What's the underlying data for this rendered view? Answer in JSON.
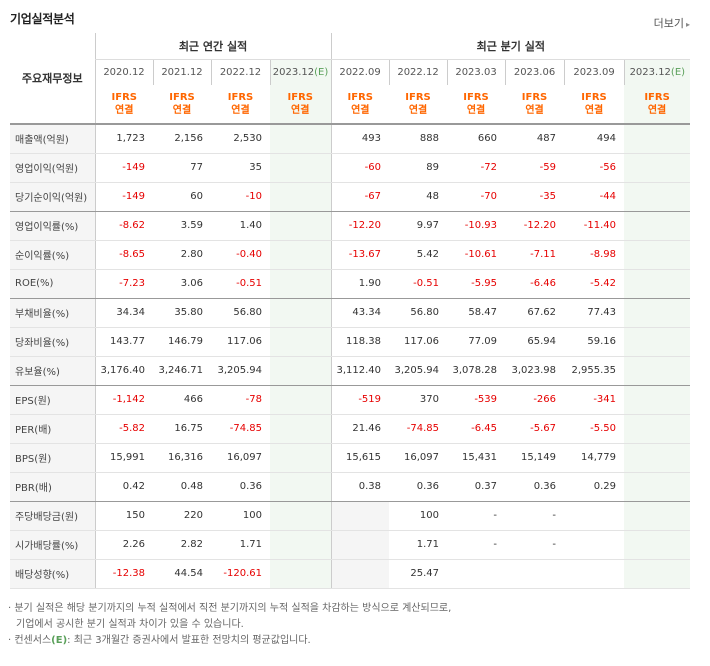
{
  "header": {
    "title": "기업실적분석",
    "more_label": "더보기",
    "more_arrow": "▸"
  },
  "table": {
    "row_header_label": "주요재무정보",
    "annual_group_label": "최근 연간 실적",
    "quarter_group_label": "최근 분기 실적",
    "columns": [
      {
        "date": "2020.12",
        "line1": "IFRS",
        "line2": "연결",
        "est": false
      },
      {
        "date": "2021.12",
        "line1": "IFRS",
        "line2": "연결",
        "est": false
      },
      {
        "date": "2022.12",
        "line1": "IFRS",
        "line2": "연결",
        "est": false
      },
      {
        "date": "2023.12",
        "date_est": "(E)",
        "line1": "IFRS",
        "line2": "연결",
        "est": true
      },
      {
        "date": "2022.09",
        "line1": "IFRS",
        "line2": "연결",
        "est": false
      },
      {
        "date": "2022.12",
        "line1": "IFRS",
        "line2": "연결",
        "est": false
      },
      {
        "date": "2023.03",
        "line1": "IFRS",
        "line2": "연결",
        "est": false
      },
      {
        "date": "2023.06",
        "line1": "IFRS",
        "line2": "연결",
        "est": false
      },
      {
        "date": "2023.09",
        "line1": "IFRS",
        "line2": "연결",
        "est": false
      },
      {
        "date": "2023.12",
        "date_est": "(E)",
        "line1": "IFRS",
        "line2": "연결",
        "est": true
      }
    ],
    "rows": [
      {
        "label": "매출액(억원)",
        "values": [
          "1,723",
          "2,156",
          "2,530",
          "",
          "493",
          "888",
          "660",
          "487",
          "494",
          ""
        ]
      },
      {
        "label": "영업이익(억원)",
        "values": [
          "-149",
          "77",
          "35",
          "",
          "-60",
          "89",
          "-72",
          "-59",
          "-56",
          ""
        ]
      },
      {
        "label": "당기순이익(억원)",
        "values": [
          "-149",
          "60",
          "-10",
          "",
          "-67",
          "48",
          "-70",
          "-35",
          "-44",
          ""
        ]
      },
      {
        "label": "영업이익률(%)",
        "values": [
          "-8.62",
          "3.59",
          "1.40",
          "",
          "-12.20",
          "9.97",
          "-10.93",
          "-12.20",
          "-11.40",
          ""
        ]
      },
      {
        "label": "순이익률(%)",
        "values": [
          "-8.65",
          "2.80",
          "-0.40",
          "",
          "-13.67",
          "5.42",
          "-10.61",
          "-7.11",
          "-8.98",
          ""
        ]
      },
      {
        "label": "ROE(%)",
        "values": [
          "-7.23",
          "3.06",
          "-0.51",
          "",
          "1.90",
          "-0.51",
          "-5.95",
          "-6.46",
          "-5.42",
          ""
        ]
      },
      {
        "label": "부채비율(%)",
        "values": [
          "34.34",
          "35.80",
          "56.80",
          "",
          "43.34",
          "56.80",
          "58.47",
          "67.62",
          "77.43",
          ""
        ]
      },
      {
        "label": "당좌비율(%)",
        "values": [
          "143.77",
          "146.79",
          "117.06",
          "",
          "118.38",
          "117.06",
          "77.09",
          "65.94",
          "59.16",
          ""
        ]
      },
      {
        "label": "유보율(%)",
        "values": [
          "3,176.40",
          "3,246.71",
          "3,205.94",
          "",
          "3,112.40",
          "3,205.94",
          "3,078.28",
          "3,023.98",
          "2,955.35",
          ""
        ]
      },
      {
        "label": "EPS(원)",
        "values": [
          "-1,142",
          "466",
          "-78",
          "",
          "-519",
          "370",
          "-539",
          "-266",
          "-341",
          ""
        ]
      },
      {
        "label": "PER(배)",
        "values": [
          "-5.82",
          "16.75",
          "-74.85",
          "",
          "21.46",
          "-74.85",
          "-6.45",
          "-5.67",
          "-5.50",
          ""
        ]
      },
      {
        "label": "BPS(원)",
        "values": [
          "15,991",
          "16,316",
          "16,097",
          "",
          "15,615",
          "16,097",
          "15,431",
          "15,149",
          "14,779",
          ""
        ]
      },
      {
        "label": "PBR(배)",
        "values": [
          "0.42",
          "0.48",
          "0.36",
          "",
          "0.38",
          "0.36",
          "0.37",
          "0.36",
          "0.29",
          ""
        ]
      },
      {
        "label": "주당배당금(원)",
        "values": [
          "150",
          "220",
          "100",
          "",
          "",
          "100",
          "-",
          "-",
          "",
          ""
        ]
      },
      {
        "label": "시가배당률(%)",
        "values": [
          "2.26",
          "2.82",
          "1.71",
          "",
          "",
          "1.71",
          "-",
          "-",
          "",
          ""
        ]
      },
      {
        "label": "배당성향(%)",
        "values": [
          "-12.38",
          "44.54",
          "-120.61",
          "",
          "",
          "25.47",
          "",
          "",
          "",
          ""
        ]
      }
    ]
  },
  "notes": {
    "line1": "· 분기 실적은 해당 분기까지의 누적 실적에서 직전 분기까지의 누적 실적을 차감하는 방식으로 계산되므로,",
    "line2": "기업에서 공시한 분기 실적과 차이가 있을 수 있습니다.",
    "line3_prefix": "· 컨센서스",
    "line3_e": "(E)",
    "line3_suffix": ": 최근 3개월간 증권사에서 발표한 전망치의 평균값입니다."
  }
}
